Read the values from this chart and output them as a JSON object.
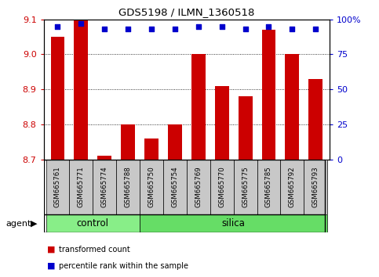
{
  "title": "GDS5198 / ILMN_1360518",
  "samples": [
    "GSM665761",
    "GSM665771",
    "GSM665774",
    "GSM665788",
    "GSM665750",
    "GSM665754",
    "GSM665769",
    "GSM665770",
    "GSM665775",
    "GSM665785",
    "GSM665792",
    "GSM665793"
  ],
  "transformed_counts": [
    9.05,
    9.1,
    8.71,
    8.8,
    8.76,
    8.8,
    9.0,
    8.91,
    8.88,
    9.07,
    9.0,
    8.93
  ],
  "percentile_ranks": [
    95,
    97,
    93,
    93,
    93,
    93,
    95,
    95,
    93,
    95,
    93,
    93
  ],
  "ylim_left": [
    8.7,
    9.1
  ],
  "yticks_left": [
    8.7,
    8.8,
    8.9,
    9.0,
    9.1
  ],
  "ylim_right": [
    0,
    100
  ],
  "yticks_right": [
    0,
    25,
    50,
    75,
    100
  ],
  "yticklabels_right": [
    "0",
    "25",
    "50",
    "75",
    "100%"
  ],
  "bar_color": "#cc0000",
  "dot_color": "#0000cc",
  "bar_width": 0.6,
  "groups": [
    {
      "label": "control",
      "start": 0,
      "end": 3,
      "color": "#88ee88"
    },
    {
      "label": "silica",
      "start": 4,
      "end": 11,
      "color": "#66dd66"
    }
  ],
  "agent_label": "agent",
  "legend_items": [
    {
      "color": "#cc0000",
      "label": "transformed count"
    },
    {
      "color": "#0000cc",
      "label": "percentile rank within the sample"
    }
  ],
  "tick_color_left": "#cc0000",
  "tick_color_right": "#0000cc",
  "background_color": "#ffffff",
  "grid_color": "#000000",
  "xlabel_area_color": "#c8c8c8",
  "control_count": 4,
  "silica_count": 8
}
